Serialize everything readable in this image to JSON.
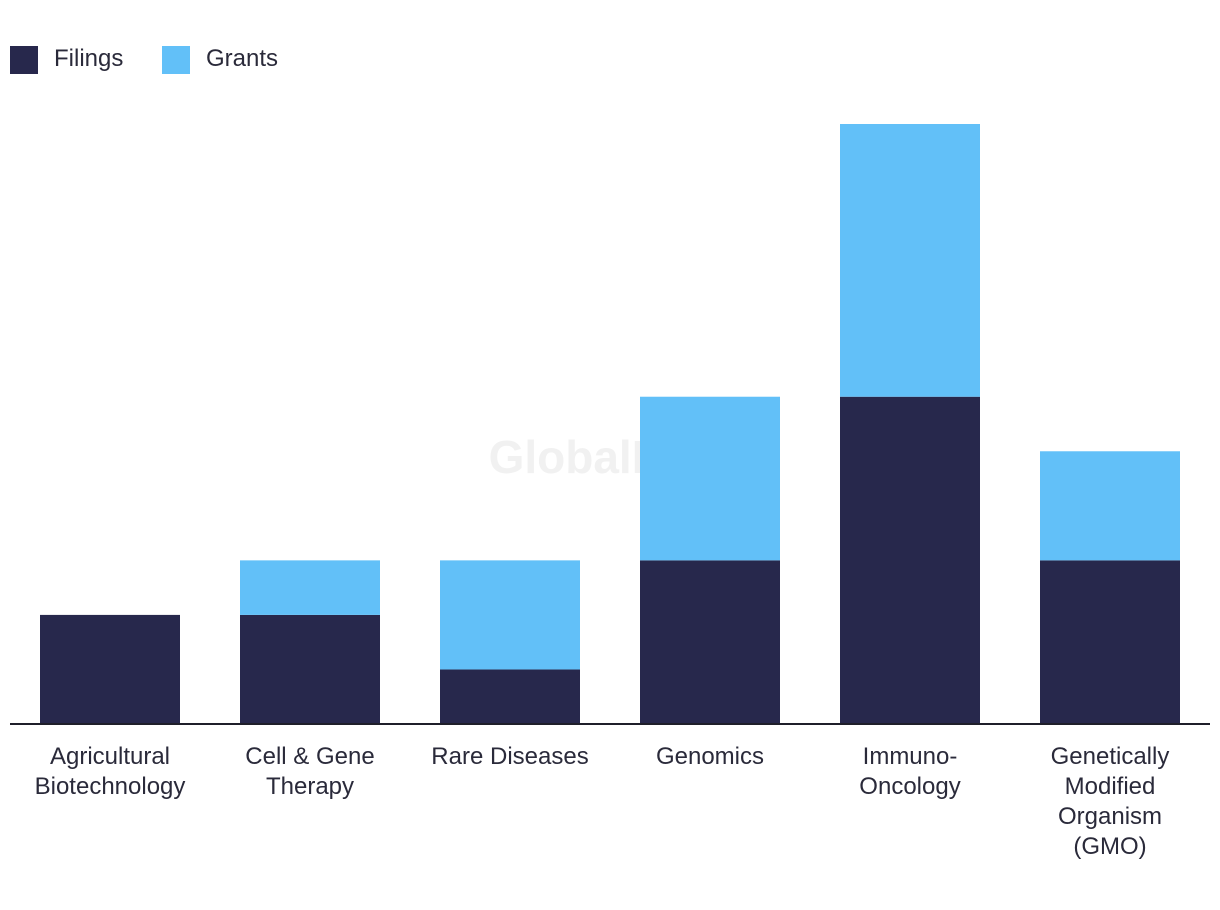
{
  "watermark": "GlobalData",
  "chart_data": {
    "type": "bar",
    "stacked": true,
    "categories": [
      [
        "Agricultural",
        "Biotechnology"
      ],
      [
        "Cell & Gene",
        "Therapy"
      ],
      [
        "Rare Diseases"
      ],
      [
        "Genomics"
      ],
      [
        "Immuno-",
        "Oncology"
      ],
      [
        "Genetically",
        "Modified",
        "Organism",
        "(GMO)"
      ]
    ],
    "series": [
      {
        "name": "Filings",
        "color": "#27284c",
        "values": [
          2,
          2,
          1,
          3,
          6,
          3
        ]
      },
      {
        "name": "Grants",
        "color": "#62c0f8",
        "values": [
          0,
          1,
          2,
          3,
          5,
          2
        ]
      }
    ],
    "ylim": [
      0,
      11
    ],
    "legend_position": "top-left",
    "grid": false
  }
}
